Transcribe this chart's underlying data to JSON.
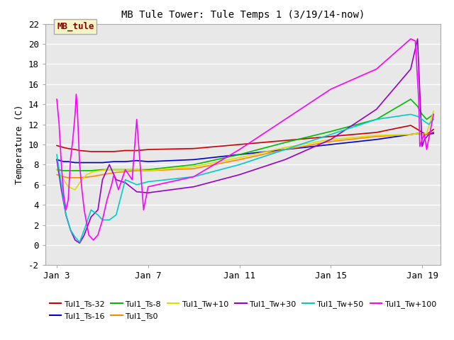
{
  "title": "MB Tule Tower: Tule Temps 1 (3/19/14-now)",
  "ylabel": "Temperature (C)",
  "ylim": [
    -2,
    22
  ],
  "yticks": [
    -2,
    0,
    2,
    4,
    6,
    8,
    10,
    12,
    14,
    16,
    18,
    20,
    22
  ],
  "xtick_labels": [
    "Jan 3",
    "Jan 7",
    "Jan 11",
    "Jan 15",
    "Jan 19"
  ],
  "xtick_positions": [
    3,
    7,
    11,
    15,
    19
  ],
  "xlim": [
    2.5,
    19.8
  ],
  "background_color": "#e8e8e8",
  "grid_color": "#ffffff",
  "annotation_text": "MB_tule",
  "annotation_color": "#8b0000",
  "annotation_bg": "#f5f5c8",
  "series": [
    {
      "label": "Tul1_Ts-32",
      "color": "#cc0000",
      "x": [
        3.0,
        3.3,
        3.5,
        3.8,
        4.0,
        4.5,
        5.0,
        5.5,
        6.0,
        6.5,
        7.0,
        9.0,
        11.0,
        13.0,
        15.0,
        17.0,
        18.5,
        18.8,
        19.0,
        19.2,
        19.5
      ],
      "y": [
        9.9,
        9.7,
        9.6,
        9.5,
        9.4,
        9.3,
        9.3,
        9.3,
        9.4,
        9.4,
        9.5,
        9.6,
        10.0,
        10.4,
        10.8,
        11.2,
        11.9,
        11.5,
        11.2,
        11.0,
        11.5
      ]
    },
    {
      "label": "Tul1_Ts-16",
      "color": "#0000cc",
      "x": [
        3.0,
        3.3,
        3.5,
        3.8,
        4.0,
        4.5,
        5.0,
        5.5,
        6.0,
        6.5,
        7.0,
        9.0,
        11.0,
        13.0,
        15.0,
        17.0,
        18.5,
        18.8,
        19.0,
        19.2,
        19.5
      ],
      "y": [
        8.5,
        8.3,
        8.3,
        8.2,
        8.2,
        8.2,
        8.2,
        8.3,
        8.3,
        8.4,
        8.3,
        8.5,
        9.0,
        9.5,
        10.0,
        10.5,
        11.0,
        11.1,
        11.0,
        11.0,
        11.1
      ]
    },
    {
      "label": "Tul1_Ts-8",
      "color": "#00bb00",
      "x": [
        3.0,
        3.3,
        3.5,
        3.8,
        4.0,
        4.5,
        5.0,
        5.5,
        6.0,
        6.5,
        7.0,
        9.0,
        11.0,
        13.0,
        15.0,
        17.0,
        18.5,
        18.8,
        19.0,
        19.2,
        19.5
      ],
      "y": [
        7.5,
        7.4,
        7.4,
        7.4,
        7.4,
        7.4,
        7.5,
        7.5,
        7.5,
        7.5,
        7.5,
        8.0,
        9.0,
        10.2,
        11.3,
        12.5,
        14.5,
        13.8,
        13.0,
        12.5,
        13.0
      ]
    },
    {
      "label": "Tul1_Ts0",
      "color": "#ff8800",
      "x": [
        3.0,
        3.3,
        3.5,
        3.8,
        4.0,
        4.5,
        5.0,
        5.5,
        6.0,
        6.5,
        7.0,
        9.0,
        11.0,
        13.0,
        15.0,
        17.0,
        18.5,
        18.8,
        19.0,
        19.2,
        19.5
      ],
      "y": [
        7.0,
        6.8,
        6.7,
        6.7,
        6.7,
        6.8,
        7.0,
        7.2,
        7.3,
        7.4,
        7.4,
        7.6,
        8.5,
        9.5,
        10.3,
        10.8,
        11.0,
        11.1,
        11.0,
        11.0,
        11.2
      ]
    },
    {
      "label": "Tul1_Tw+10",
      "color": "#dddd00",
      "x": [
        3.0,
        3.3,
        3.5,
        3.8,
        4.0,
        4.3,
        4.6,
        4.9,
        5.2,
        5.5,
        6.0,
        6.5,
        7.0,
        9.0,
        11.0,
        13.0,
        15.0,
        17.0,
        18.5,
        18.8,
        19.0,
        19.2,
        19.5
      ],
      "y": [
        7.5,
        6.5,
        5.8,
        5.5,
        6.2,
        7.0,
        7.3,
        7.4,
        7.5,
        7.5,
        7.5,
        7.5,
        7.4,
        7.8,
        8.7,
        9.7,
        10.5,
        10.9,
        11.0,
        11.1,
        11.0,
        11.1,
        13.3
      ]
    },
    {
      "label": "Tul1_Tw+30",
      "color": "#9900cc",
      "x": [
        3.0,
        3.2,
        3.4,
        3.6,
        3.8,
        4.0,
        4.2,
        4.5,
        4.8,
        5.0,
        5.3,
        5.6,
        6.0,
        6.5,
        7.0,
        9.0,
        11.0,
        13.0,
        15.0,
        17.0,
        18.5,
        18.8,
        19.0,
        19.1,
        19.3,
        19.5
      ],
      "y": [
        8.5,
        5.5,
        3.0,
        1.5,
        0.5,
        0.2,
        1.0,
        2.8,
        3.5,
        6.5,
        8.0,
        6.5,
        6.2,
        5.3,
        5.2,
        5.8,
        7.0,
        8.5,
        10.5,
        13.5,
        17.5,
        20.5,
        9.8,
        10.5,
        11.0,
        11.2
      ]
    },
    {
      "label": "Tul1_Tw+50",
      "color": "#00cccc",
      "x": [
        3.0,
        3.2,
        3.4,
        3.6,
        3.8,
        4.0,
        4.2,
        4.5,
        4.8,
        5.0,
        5.3,
        5.6,
        6.0,
        6.5,
        7.0,
        9.0,
        11.0,
        13.0,
        15.0,
        17.0,
        18.5,
        18.8,
        19.0,
        19.1,
        19.3,
        19.5
      ],
      "y": [
        9.0,
        6.0,
        3.0,
        1.5,
        0.8,
        0.3,
        1.5,
        3.5,
        3.0,
        2.5,
        2.5,
        3.0,
        6.5,
        6.0,
        6.3,
        6.8,
        8.0,
        9.5,
        11.0,
        12.5,
        13.0,
        12.8,
        12.5,
        12.3,
        12.0,
        12.5
      ]
    },
    {
      "label": "Tul1_Tw+100",
      "color": "#ff00ff",
      "x": [
        3.0,
        3.1,
        3.15,
        3.2,
        3.3,
        3.4,
        3.5,
        3.6,
        3.7,
        3.8,
        3.85,
        3.9,
        4.0,
        4.1,
        4.2,
        4.4,
        4.6,
        4.8,
        5.0,
        5.2,
        5.4,
        5.5,
        5.7,
        6.0,
        6.3,
        6.5,
        6.8,
        7.0,
        9.0,
        11.0,
        13.0,
        15.0,
        17.0,
        18.5,
        18.7,
        18.85,
        18.9,
        19.0,
        19.1,
        19.2,
        19.5
      ],
      "y": [
        14.5,
        12.0,
        10.0,
        8.0,
        5.0,
        3.5,
        4.5,
        8.5,
        10.5,
        13.0,
        15.0,
        13.5,
        8.0,
        5.5,
        3.5,
        1.0,
        0.5,
        1.0,
        2.5,
        4.5,
        6.0,
        7.0,
        5.5,
        7.5,
        6.5,
        12.5,
        3.5,
        5.8,
        6.8,
        9.5,
        12.5,
        15.5,
        17.5,
        20.5,
        20.3,
        14.5,
        9.8,
        10.5,
        11.0,
        9.5,
        13.0
      ]
    }
  ],
  "legend_entries": [
    {
      "label": "Tul1_Ts-32",
      "color": "#cc0000"
    },
    {
      "label": "Tul1_Ts-16",
      "color": "#0000cc"
    },
    {
      "label": "Tul1_Ts-8",
      "color": "#00bb00"
    },
    {
      "label": "Tul1_Ts0",
      "color": "#ff8800"
    },
    {
      "label": "Tul1_Tw+10",
      "color": "#dddd00"
    },
    {
      "label": "Tul1_Tw+30",
      "color": "#9900cc"
    },
    {
      "label": "Tul1_Tw+50",
      "color": "#00cccc"
    },
    {
      "label": "Tul1_Tw+100",
      "color": "#ff00ff"
    }
  ]
}
